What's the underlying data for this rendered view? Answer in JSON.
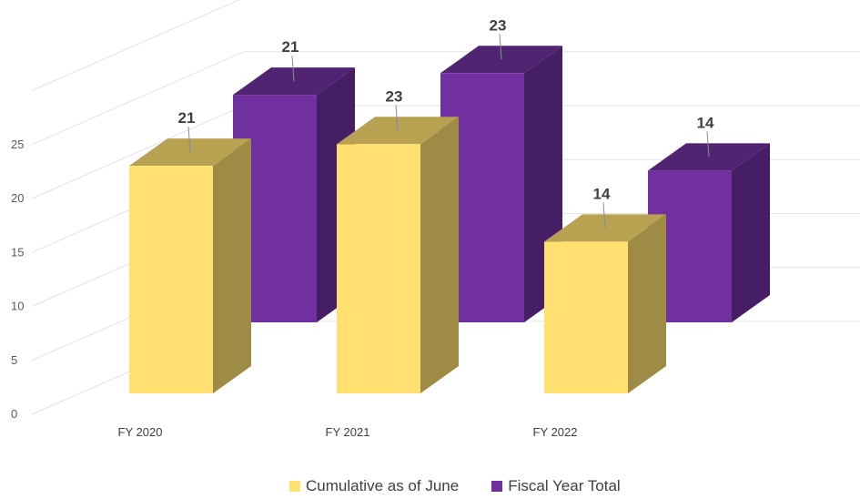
{
  "chart_data": {
    "type": "bar",
    "categories": [
      "FY 2020",
      "FY 2021",
      "FY 2022"
    ],
    "series": [
      {
        "name": "Cumulative as of June",
        "values": [
          21,
          23,
          14
        ],
        "color": "#FFE070"
      },
      {
        "name": "Fiscal Year Total",
        "values": [
          21,
          23,
          14
        ],
        "color": "#7030A0"
      }
    ],
    "yticks": [
      "0",
      "5",
      "10",
      "15",
      "20",
      "25"
    ],
    "ylim": [
      0,
      25
    ],
    "grid": true,
    "legend": "bottom",
    "style": "3d-clustered"
  }
}
